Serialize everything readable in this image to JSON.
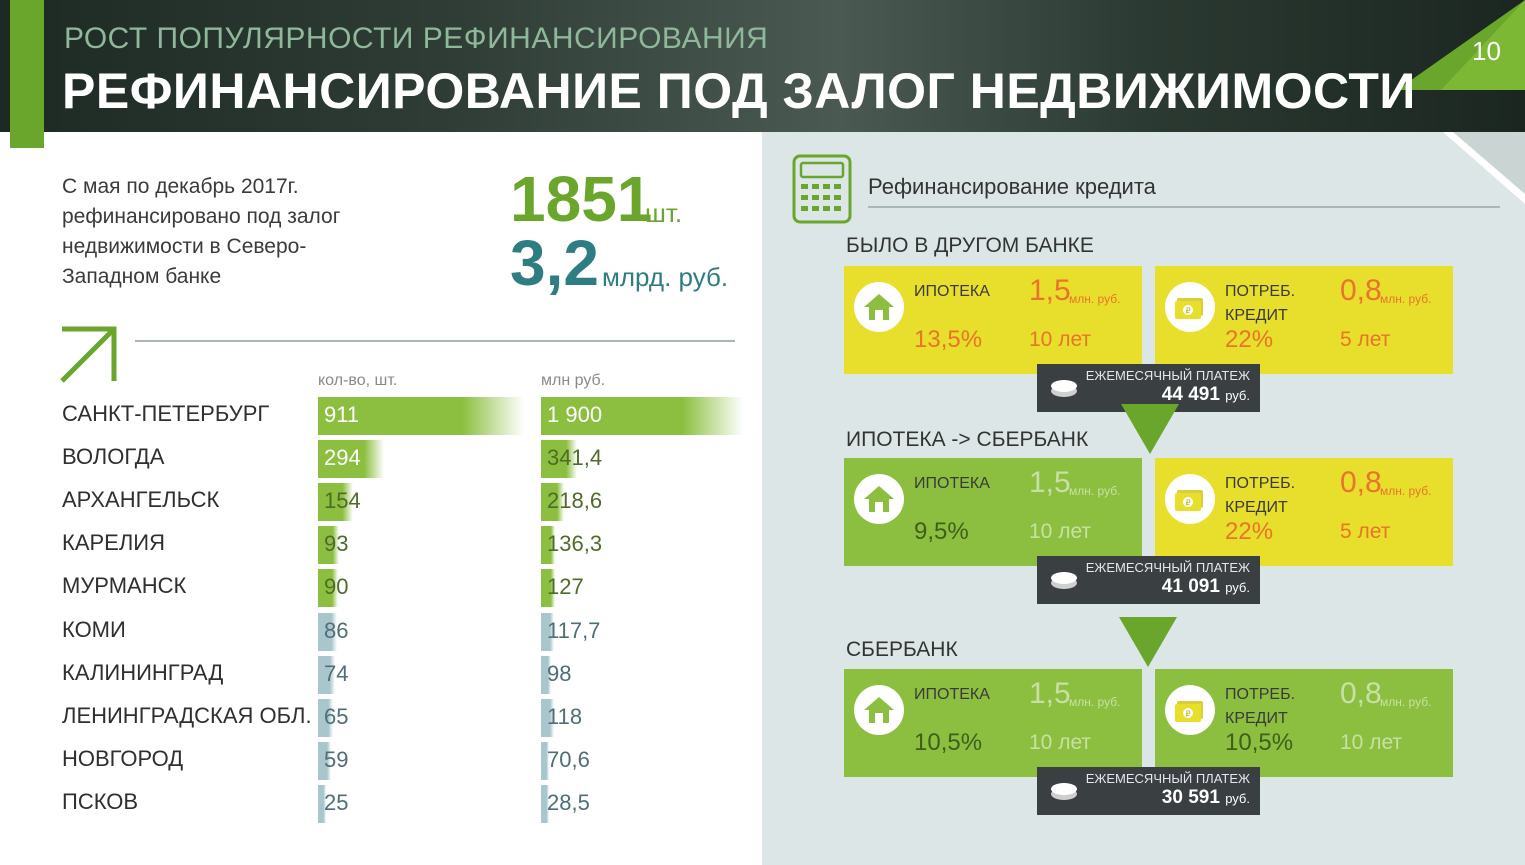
{
  "header": {
    "subtitle": "РОСТ ПОПУЛЯРНОСТИ РЕФИНАНСИРОВАНИЯ",
    "title": "РЕФИНАНСИРОВАНИЕ ПОД ЗАЛОГ НЕДВИЖИМОСТИ",
    "page_number": "10"
  },
  "summary": {
    "intro": "С мая по декабрь 2017г. рефинансировано под залог недвижимости в Северо-Западном банке",
    "count_value": "1851",
    "count_unit": "шт.",
    "sum_value": "3,2",
    "sum_unit": "млрд. руб."
  },
  "chart_data": {
    "type": "bar",
    "orientation": "horizontal",
    "categories": [
      "САНКТ-ПЕТЕРБУРГ",
      "ВОЛОГДА",
      "АРХАНГЕЛЬСК",
      "КАРЕЛИЯ",
      "МУРМАНСК",
      "КОМИ",
      "КАЛИНИНГРАД",
      "ЛЕНИНГРАДСКАЯ ОБЛ.",
      "НОВГОРОД",
      "ПСКОВ"
    ],
    "series": [
      {
        "name": "кол-во, шт.",
        "values": [
          911,
          294,
          154,
          93,
          90,
          86,
          74,
          65,
          59,
          25
        ],
        "labels": [
          "911",
          "294",
          "154",
          "93",
          "90",
          "86",
          "74",
          "65",
          "59",
          "25"
        ]
      },
      {
        "name": "млн руб.",
        "values": [
          1900,
          341.4,
          218.6,
          136.3,
          127,
          117.7,
          98,
          118,
          70.6,
          28.5
        ],
        "labels": [
          "1 900",
          "341,4",
          "218,6",
          "136,3",
          "127",
          "117,7",
          "98",
          "118",
          "70,6",
          "28,5"
        ]
      }
    ],
    "colors": {
      "green_rows": "#8cbf3f",
      "blue_rows": "#a9c6cc"
    }
  },
  "refinance": {
    "title": "Рефинансирование кредита",
    "sections": [
      {
        "label": "БЫЛО В ДРУГОМ БАНКЕ",
        "cards": [
          {
            "type": "ИПОТЕКА",
            "amount": "1,5",
            "amount_unit": "млн. руб.",
            "rate": "13,5%",
            "term": "10 лет",
            "bg": "#e8de2c",
            "value_color": "#e8752a",
            "icon": "house-icon"
          },
          {
            "type": "ПОТРЕБ. КРЕДИТ",
            "amount": "0,8",
            "amount_unit": "млн. руб.",
            "rate": "22%",
            "term": "5 лет",
            "bg": "#e8de2c",
            "value_color": "#e8752a",
            "icon": "money-icon"
          }
        ],
        "payment_label": "ЕЖЕМЕСЯЧНЫЙ ПЛАТЕЖ",
        "payment_amount": "44 491",
        "payment_unit": "руб."
      },
      {
        "label": "ИПОТЕКА -> СБЕРБАНК",
        "cards": [
          {
            "type": "ИПОТЕКА",
            "amount": "1,5",
            "amount_unit": "млн. руб.",
            "rate": "9,5%",
            "term": "10 лет",
            "bg": "#8cbf3f",
            "value_color": "#c8e0a4",
            "icon": "house-icon"
          },
          {
            "type": "ПОТРЕБ. КРЕДИТ",
            "amount": "0,8",
            "amount_unit": "млн. руб.",
            "rate": "22%",
            "term": "5 лет",
            "bg": "#e8de2c",
            "value_color": "#e8752a",
            "icon": "money-icon"
          }
        ],
        "payment_label": "ЕЖЕМЕСЯЧНЫЙ ПЛАТЕЖ",
        "payment_amount": "41 091",
        "payment_unit": "руб."
      },
      {
        "label": "СБЕРБАНК",
        "cards": [
          {
            "type": "ИПОТЕКА",
            "amount": "1,5",
            "amount_unit": "млн. руб.",
            "rate": "10,5%",
            "term": "10 лет",
            "bg": "#8cbf3f",
            "value_color": "#c8e0a4",
            "icon": "house-icon"
          },
          {
            "type": "ПОТРЕБ. КРЕДИТ",
            "amount": "0,8",
            "amount_unit": "млн. руб.",
            "rate": "10,5%",
            "term": "10 лет",
            "bg": "#8cbf3f",
            "value_color": "#c8e0a4",
            "icon": "money-icon"
          }
        ],
        "payment_label": "ЕЖЕМЕСЯЧНЫЙ ПЛАТЕЖ",
        "payment_amount": "30 591",
        "payment_unit": "руб."
      }
    ]
  }
}
